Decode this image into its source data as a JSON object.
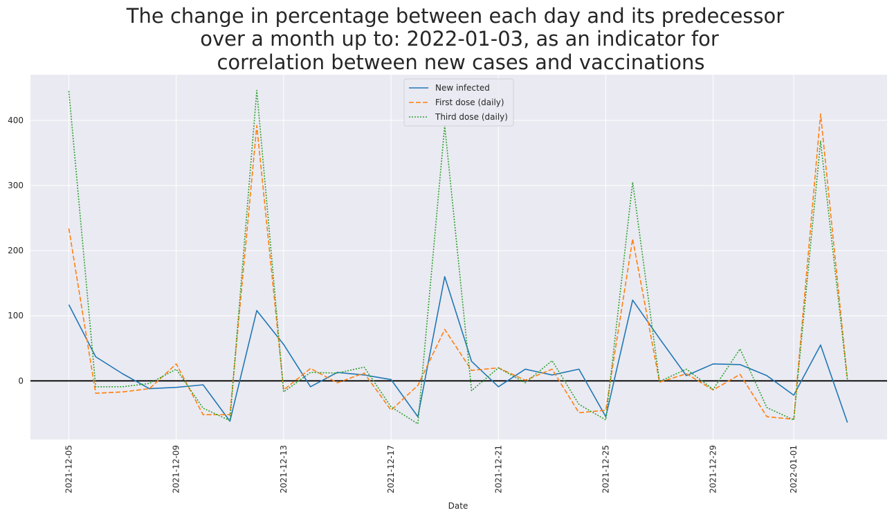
{
  "chart_data": {
    "type": "line",
    "title_lines": [
      "The change in percentage between each day and its predecessor",
      "over a month up to: 2022-01-03, as an indicator for",
      "correlation between new cases and vaccinations"
    ],
    "xlabel": "Date",
    "ylabel": "",
    "x": [
      "2021-12-05",
      "2021-12-06",
      "2021-12-07",
      "2021-12-08",
      "2021-12-09",
      "2021-12-10",
      "2021-12-11",
      "2021-12-12",
      "2021-12-13",
      "2021-12-14",
      "2021-12-15",
      "2021-12-16",
      "2021-12-17",
      "2021-12-18",
      "2021-12-19",
      "2021-12-20",
      "2021-12-21",
      "2021-12-22",
      "2021-12-23",
      "2021-12-24",
      "2021-12-25",
      "2021-12-26",
      "2021-12-27",
      "2021-12-28",
      "2021-12-29",
      "2021-12-30",
      "2021-12-31",
      "2022-01-01",
      "2022-01-02",
      "2022-01-03"
    ],
    "xticks": [
      "2021-12-05",
      "2021-12-09",
      "2021-12-13",
      "2021-12-17",
      "2021-12-21",
      "2021-12-25",
      "2021-12-29",
      "2022-01-01"
    ],
    "ylim": [
      -90,
      470
    ],
    "yticks": [
      0,
      100,
      200,
      300,
      400
    ],
    "reference_line_y": 0,
    "grid": true,
    "legend_position": "top-center",
    "series": [
      {
        "name": "New infected",
        "color": "#1f77b4",
        "dash": "solid",
        "values": [
          117,
          37,
          11,
          -12,
          -10,
          -6,
          -62,
          108,
          56,
          -9,
          13,
          9,
          2,
          -55,
          160,
          30,
          -9,
          18,
          9,
          18,
          -55,
          124,
          65,
          8,
          26,
          25,
          8,
          -22,
          55,
          -64
        ]
      },
      {
        "name": "First dose (daily)",
        "color": "#ff7f0e",
        "dash": "dashed",
        "values": [
          234,
          -19,
          -17,
          -12,
          26,
          -52,
          -52,
          392,
          -14,
          19,
          -3,
          12,
          -45,
          -7,
          79,
          16,
          20,
          1,
          18,
          -49,
          -45,
          218,
          -2,
          11,
          -14,
          10,
          -55,
          -59,
          410,
          2
        ]
      },
      {
        "name": "Third dose (daily)",
        "color": "#2ca02c",
        "dash": "dotted",
        "values": [
          445,
          -9,
          -9,
          -4,
          18,
          -42,
          -61,
          446,
          -17,
          13,
          12,
          21,
          -40,
          -66,
          392,
          -15,
          20,
          -3,
          31,
          -36,
          -60,
          305,
          -1,
          18,
          -13,
          49,
          -41,
          -60,
          368,
          1
        ]
      }
    ]
  }
}
